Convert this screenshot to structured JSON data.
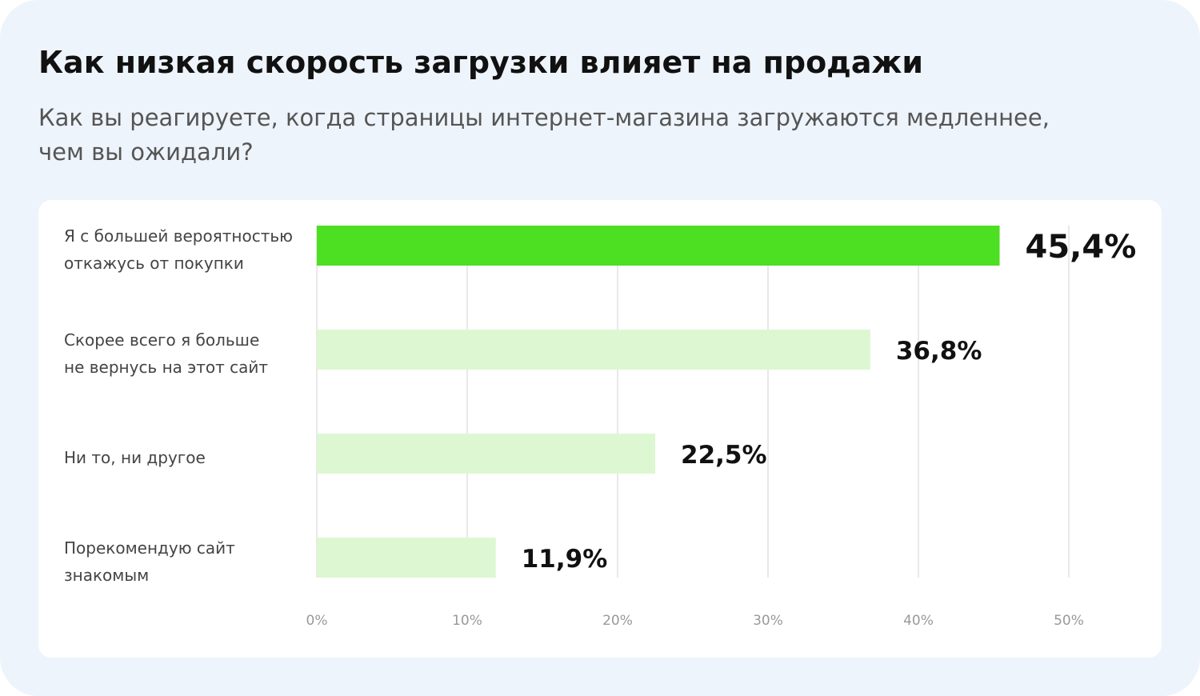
{
  "chart_data": {
    "type": "bar",
    "orientation": "horizontal",
    "title": "Как низкая скорость загрузки влияет на продажи",
    "subtitle": "Как вы реагируете, когда страницы интернет-магазина загружаются медленнее,\nчем вы ожидали?",
    "categories": [
      "Я с большей вероятностью\nоткажусь от покупки",
      "Скорее всего я больше\nне вернусь на этот сайт",
      "Ни то, ни другое",
      "Порекомендую сайт\nзнакомым"
    ],
    "values": [
      45.4,
      36.8,
      22.5,
      11.9
    ],
    "value_labels": [
      "45,4%",
      "36,8%",
      "22,5%",
      "11,9%"
    ],
    "colors": [
      "#4cdf22",
      "#dcf7d2",
      "#dcf7d2",
      "#dcf7d2"
    ],
    "xlim": [
      0,
      50
    ],
    "xticks": [
      {
        "value": 0,
        "label": "0%"
      },
      {
        "value": 10,
        "label": "10%"
      },
      {
        "value": 20,
        "label": "20%"
      },
      {
        "value": 30,
        "label": "30%"
      },
      {
        "value": 40,
        "label": "40%"
      },
      {
        "value": 50,
        "label": "50%"
      }
    ],
    "grid": true
  }
}
